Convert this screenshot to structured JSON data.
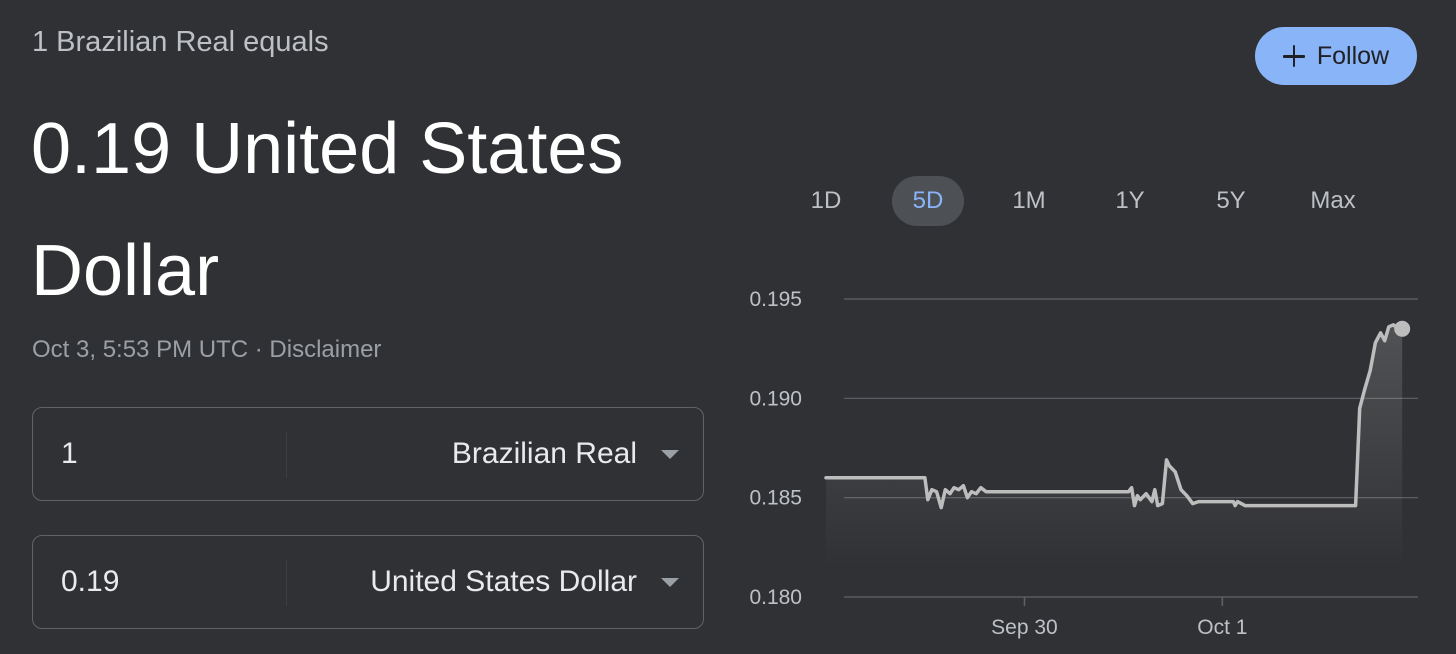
{
  "header": {
    "equals_text": "1 Brazilian Real equals",
    "result_text": "0.19 United States Dollar",
    "timestamp": "Oct 3, 5:53 PM UTC",
    "separator": "·",
    "disclaimer": "Disclaimer"
  },
  "follow_button": {
    "label": "Follow",
    "icon": "plus-icon"
  },
  "converter": {
    "from": {
      "value": "1",
      "currency": "Brazilian Real"
    },
    "to": {
      "value": "0.19",
      "currency": "United States Dollar"
    }
  },
  "ranges": [
    {
      "label": "1D",
      "active": false
    },
    {
      "label": "5D",
      "active": true
    },
    {
      "label": "1M",
      "active": false
    },
    {
      "label": "1Y",
      "active": false
    },
    {
      "label": "5Y",
      "active": false
    },
    {
      "label": "Max",
      "active": false
    }
  ],
  "colors": {
    "background": "#303134",
    "accent": "#8ab4f8",
    "line": "#bdbdbd",
    "grid": "#5f6368"
  },
  "chart_data": {
    "type": "line",
    "title": "",
    "xlabel": "",
    "ylabel": "",
    "ylim": [
      0.18,
      0.195
    ],
    "yticks": [
      0.195,
      0.19,
      0.185,
      0.18
    ],
    "ytick_labels": [
      "0.195",
      "0.190",
      "0.185",
      "0.180"
    ],
    "xlim": [
      0,
      1
    ],
    "xticks": [
      {
        "x": 0.341,
        "label": "Sep 30"
      },
      {
        "x": 0.681,
        "label": "Oct 1"
      }
    ],
    "grid": true,
    "series": [
      {
        "x": [
          0.0,
          0.024,
          0.05,
          0.1,
          0.15,
          0.17,
          0.175,
          0.182,
          0.19,
          0.198,
          0.205,
          0.213,
          0.22,
          0.228,
          0.236,
          0.243,
          0.25,
          0.258,
          0.266,
          0.275,
          0.3,
          0.35,
          0.4,
          0.45,
          0.5,
          0.52,
          0.525,
          0.53,
          0.535,
          0.54,
          0.55,
          0.56,
          0.565,
          0.57,
          0.578,
          0.585,
          0.59,
          0.6,
          0.61,
          0.62,
          0.63,
          0.64,
          0.65,
          0.66,
          0.7,
          0.703,
          0.707,
          0.72,
          0.75,
          0.8,
          0.85,
          0.9,
          0.91,
          0.917,
          0.925,
          0.935,
          0.944,
          0.953,
          0.96,
          0.967,
          0.975,
          0.983,
          0.99
        ],
        "y": [
          0.186,
          0.186,
          0.186,
          0.186,
          0.186,
          0.186,
          0.1849,
          0.1854,
          0.1853,
          0.1845,
          0.1854,
          0.1852,
          0.1855,
          0.1854,
          0.1856,
          0.185,
          0.1853,
          0.1852,
          0.1855,
          0.1853,
          0.1853,
          0.1853,
          0.1853,
          0.1853,
          0.1853,
          0.1853,
          0.1855,
          0.1846,
          0.1851,
          0.1849,
          0.1852,
          0.1848,
          0.1854,
          0.1846,
          0.1847,
          0.1869,
          0.1866,
          0.1863,
          0.1854,
          0.1851,
          0.1847,
          0.1848,
          0.1848,
          0.1848,
          0.1848,
          0.1846,
          0.1848,
          0.1846,
          0.1846,
          0.1846,
          0.1846,
          0.1846,
          0.1846,
          0.1895,
          0.1904,
          0.1914,
          0.1928,
          0.1933,
          0.1929,
          0.1936,
          0.1937,
          0.1935,
          0.1935
        ]
      }
    ]
  }
}
